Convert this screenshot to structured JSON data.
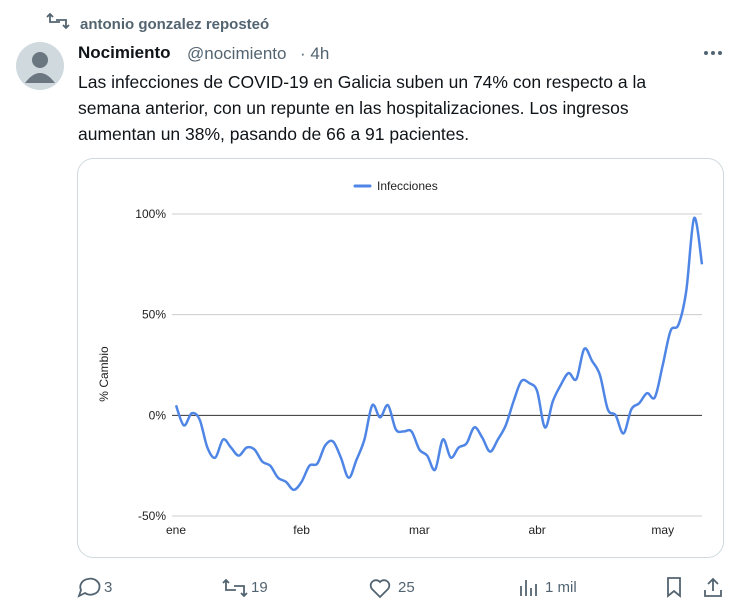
{
  "repost": "antonio gonzalez reposteó",
  "author": {
    "name": "Nocimiento",
    "handle": "@nocimiento",
    "time": "· 4h"
  },
  "text": "Las infecciones de COVID-19 en Galicia suben un 74% con respecto a la semana anterior, con un repunte en las hospitalizaciones. Los ingresos aumentan un 38%, pasando de 66 a 91 pacientes.",
  "stats": {
    "replies": "3",
    "reposts": "19",
    "likes": "25",
    "views": "1 mil"
  },
  "chart_data": {
    "type": "line",
    "ylabel": "% Cambio",
    "categories": [
      "ene",
      null,
      null,
      null,
      null,
      null,
      null,
      null,
      null,
      null,
      null,
      null,
      null,
      null,
      null,
      null,
      "feb",
      null,
      null,
      null,
      null,
      null,
      null,
      null,
      null,
      null,
      null,
      null,
      null,
      null,
      null,
      "mar",
      null,
      null,
      null,
      null,
      null,
      null,
      null,
      null,
      null,
      null,
      null,
      null,
      null,
      null,
      "abr",
      null,
      null,
      null,
      null,
      null,
      null,
      null,
      null,
      null,
      null,
      null,
      null,
      null,
      null,
      null,
      "may",
      null,
      null,
      null,
      null,
      null
    ],
    "series": [
      {
        "name": "Infecciones",
        "color": "#4f86e6",
        "values": [
          5,
          -5,
          1,
          -2,
          -16,
          -21,
          -12,
          -16,
          -20,
          -16,
          -17,
          -23,
          -25,
          -31,
          -33,
          -37,
          -33,
          -25,
          -24,
          -15,
          -13,
          -21,
          -31,
          -22,
          -12,
          5,
          -1,
          5,
          -7,
          -8,
          -8,
          -17,
          -20,
          -27,
          -12,
          -21,
          -16,
          -14,
          -6,
          -11,
          -18,
          -12,
          -5,
          7,
          17,
          16,
          12,
          -6,
          7,
          15,
          21,
          18,
          33,
          27,
          20,
          3,
          0,
          -9,
          3,
          6,
          11,
          9,
          25,
          42,
          45,
          62,
          98,
          75
        ]
      }
    ],
    "ylim": [
      -50,
      100
    ],
    "yticks": [
      {
        "value": -50,
        "label": "-50%"
      },
      {
        "value": 0,
        "label": "0%"
      },
      {
        "value": 50,
        "label": "50%"
      },
      {
        "value": 100,
        "label": "100%"
      }
    ],
    "grid": true,
    "legend": "top"
  }
}
